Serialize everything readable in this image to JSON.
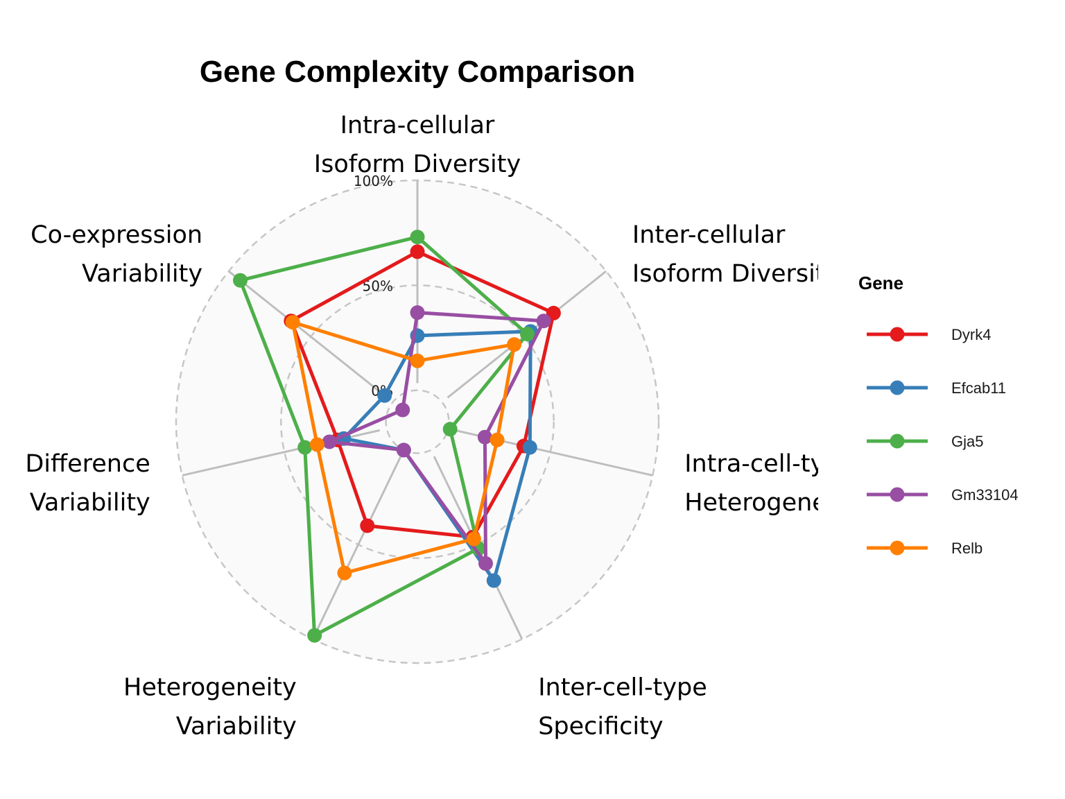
{
  "chart_data": {
    "type": "radar",
    "title": "Gene Complexity Comparison",
    "axes": [
      [
        "Intra-cellular",
        "Isoform Diversity"
      ],
      [
        "Inter-cellular",
        "Isoform Diversity"
      ],
      [
        "Intra-cell-type",
        "Heterogeneity"
      ],
      [
        "Inter-cell-type",
        "Specificity"
      ],
      [
        "Heterogeneity",
        "Variability"
      ],
      [
        "Difference",
        "Variability"
      ],
      [
        "Co-expression",
        "Variability"
      ]
    ],
    "rlim": [
      -15,
      100
    ],
    "ticks": [
      {
        "value": 100,
        "label": "100%"
      },
      {
        "value": 50,
        "label": "50%"
      },
      {
        "value": 0,
        "label": "0%"
      }
    ],
    "legend": {
      "title": "Gene",
      "position": "right"
    },
    "series": [
      {
        "name": "Dyrk4",
        "color": "#E41A1C",
        "values": [
          66,
          68,
          37,
          46,
          40,
          24,
          62
        ]
      },
      {
        "name": "Efcab11",
        "color": "#377EB8",
        "values": [
          26,
          54,
          40,
          69,
          0,
          21,
          5
        ]
      },
      {
        "name": "Gja5",
        "color": "#4DAF4A",
        "values": [
          73,
          52,
          1,
          52,
          98,
          40,
          93
        ]
      },
      {
        "name": "Gm33104",
        "color": "#984EA3",
        "values": [
          37,
          62,
          18,
          60,
          0,
          28,
          -6
        ]
      },
      {
        "name": "Relb",
        "color": "#FF7F00",
        "values": [
          14,
          44,
          24,
          47,
          65,
          34,
          61
        ]
      }
    ]
  }
}
